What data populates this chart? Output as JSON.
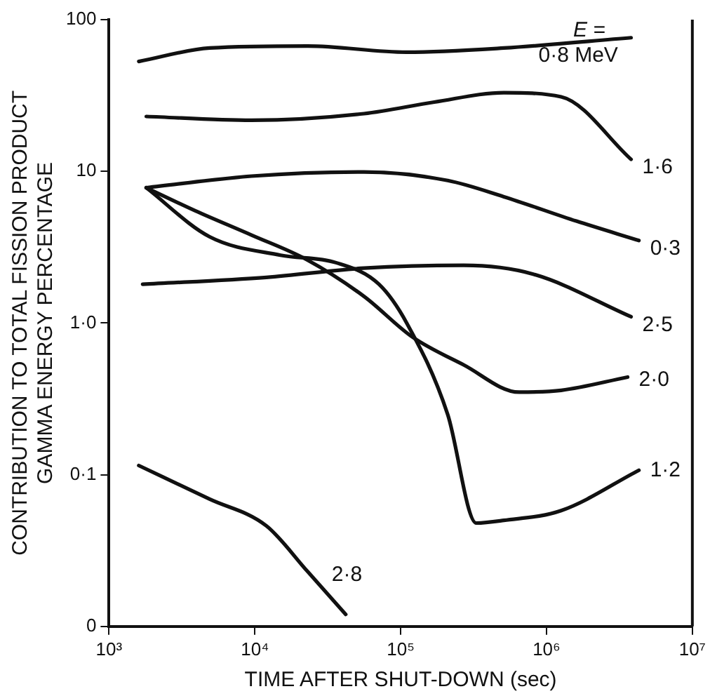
{
  "chart_data": {
    "type": "line",
    "xlabel": "TIME AFTER SHUT-DOWN (sec)",
    "ylabel": "CONTRIBUTION TO TOTAL FISSION PRODUCT\nGAMMA ENERGY PERCENTAGE",
    "log": "xy",
    "grid": false,
    "legend": false,
    "marker": "none",
    "line_style": "solid",
    "xlim": [
      1000,
      10000000
    ],
    "xticks": [
      {
        "value": 1000,
        "label": "10³"
      },
      {
        "value": 10000,
        "label": "10⁴"
      },
      {
        "value": 100000,
        "label": "10⁵"
      },
      {
        "value": 1000000,
        "label": "10⁶"
      },
      {
        "value": 10000000,
        "label": "10⁷"
      }
    ],
    "ylim": [
      0.01,
      100
    ],
    "yticks": [
      {
        "value": 0.01,
        "label": "0"
      },
      {
        "value": 0.1,
        "label": "0·1"
      },
      {
        "value": 1,
        "label": "1·0"
      },
      10,
      100
    ],
    "annotations": [
      "E ="
    ],
    "series": [
      {
        "name": "0·8 MeV",
        "color": "#111111",
        "x": [
          1600,
          4900,
          23000,
          110000,
          510000,
          3800000
        ],
        "values": [
          53,
          65,
          67,
          61,
          65,
          76
        ]
      },
      {
        "name": "1·6",
        "color": "#111111",
        "x": [
          1800,
          9500,
          56000,
          170000,
          510000,
          1260000,
          3800000
        ],
        "values": [
          23,
          21.7,
          24,
          28.6,
          33,
          31,
          12
        ]
      },
      {
        "name": "0·3",
        "color": "#111111",
        "x": [
          1800,
          9500,
          56000,
          210000,
          510000,
          1600000,
          4300000
        ],
        "values": [
          7.8,
          9.3,
          9.9,
          8.7,
          6.8,
          4.7,
          3.5
        ]
      },
      {
        "name": "2·5",
        "color": "#111111",
        "x": [
          1700,
          12000,
          56000,
          270000,
          810000,
          3800000
        ],
        "values": [
          1.8,
          2.0,
          2.3,
          2.4,
          2.1,
          1.1
        ]
      },
      {
        "name": "2·0",
        "color": "#111111",
        "x": [
          1800,
          3900,
          9500,
          23000,
          56000,
          120000,
          270000,
          650000,
          1260000,
          3600000
        ],
        "values": [
          7.8,
          5.5,
          3.8,
          2.6,
          1.5,
          0.81,
          0.53,
          0.35,
          0.36,
          0.44
        ]
      },
      {
        "name": "1·2",
        "color": "#111111",
        "x": [
          1800,
          4900,
          15000,
          36000,
          71000,
          110000,
          210000,
          330000,
          510000,
          1260000,
          4300000
        ],
        "values": [
          7.8,
          3.7,
          2.8,
          2.5,
          1.8,
          1.0,
          0.25,
          0.048,
          0.05,
          0.058,
          0.107
        ]
      },
      {
        "name": "2·8",
        "color": "#111111",
        "x": [
          1600,
          4900,
          12000,
          23000,
          42000
        ],
        "values": [
          0.115,
          0.069,
          0.046,
          0.023,
          0.012
        ]
      }
    ]
  }
}
